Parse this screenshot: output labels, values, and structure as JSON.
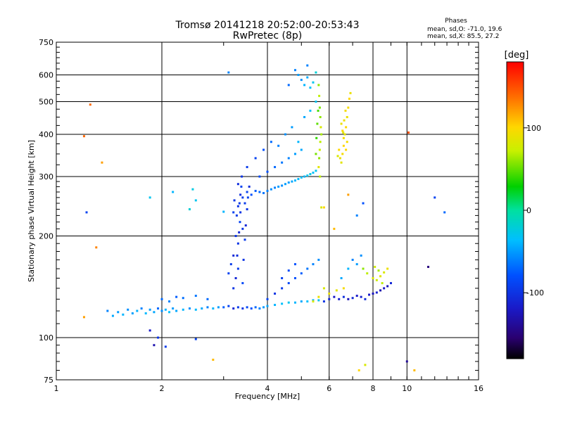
{
  "chart_data": {
    "type": "scatter",
    "title": "Tromsø 20141218 20:52:00-20:53:43",
    "subtitle": "RwPretec (8p)",
    "xlabel": "Frequency [MHz]",
    "ylabel": "Stationary phase Virtual Height [km]",
    "x_scale": "log",
    "y_scale": "log",
    "xlim": [
      1,
      16
    ],
    "ylim": [
      75,
      750
    ],
    "x_ticks": [
      1,
      2,
      4,
      6,
      8,
      10,
      16
    ],
    "x_tick_labels": [
      "1",
      "2",
      "4",
      "6",
      "8",
      "10",
      "16"
    ],
    "y_ticks": [
      75,
      100,
      200,
      300,
      400,
      500,
      600,
      750
    ],
    "y_tick_labels": [
      "75",
      "100",
      "200",
      "300",
      "400",
      "500",
      "600",
      "750"
    ],
    "x_grid_lines": [
      2,
      4,
      6,
      8,
      10
    ],
    "y_grid_lines": [
      100,
      200,
      300,
      400,
      500,
      600
    ],
    "grid": true,
    "phases_box": {
      "heading": "Phases",
      "line_o": "mean, sd,O: -71.0, 19.6",
      "line_x": "mean, sd,X:  85.5, 27.2"
    },
    "colorbar": {
      "label": "[deg]",
      "range": [
        -180,
        180
      ],
      "ticks": [
        100,
        0,
        -100
      ],
      "tick_labels": [
        "100",
        "0",
        "-100"
      ]
    },
    "series": [
      {
        "points": [
          [
            1.4,
            120,
            -60
          ],
          [
            1.45,
            116,
            -45
          ],
          [
            1.5,
            119,
            -50
          ],
          [
            1.55,
            117,
            -40
          ],
          [
            1.6,
            121,
            -55
          ],
          [
            1.65,
            118,
            -48
          ],
          [
            1.7,
            120,
            -42
          ],
          [
            1.75,
            122,
            -60
          ],
          [
            1.8,
            118,
            -38
          ],
          [
            1.85,
            121,
            -50
          ],
          [
            1.9,
            119,
            -45
          ],
          [
            1.95,
            122,
            -70
          ],
          [
            2.0,
            120,
            -55
          ],
          [
            2.05,
            121,
            -40
          ],
          [
            2.1,
            119,
            -35
          ],
          [
            2.15,
            122,
            -50
          ],
          [
            2.2,
            120,
            -45
          ],
          [
            2.3,
            121,
            -40
          ],
          [
            2.4,
            122,
            -55
          ],
          [
            2.5,
            121,
            -38
          ],
          [
            2.6,
            122,
            -45
          ],
          [
            2.7,
            123,
            -60
          ],
          [
            2.8,
            122,
            -40
          ],
          [
            2.9,
            123,
            -50
          ],
          [
            3.0,
            123,
            -75
          ],
          [
            3.1,
            124,
            -90
          ],
          [
            3.2,
            122,
            -110
          ],
          [
            3.3,
            123,
            -95
          ],
          [
            3.4,
            122,
            -100
          ],
          [
            3.5,
            123,
            -85
          ],
          [
            3.6,
            122,
            -80
          ],
          [
            3.7,
            123,
            -70
          ],
          [
            3.8,
            122,
            -60
          ],
          [
            3.9,
            123,
            -50
          ],
          [
            4.0,
            124,
            -45
          ],
          [
            4.2,
            125,
            -40
          ],
          [
            4.4,
            126,
            -35
          ],
          [
            4.6,
            127,
            -30
          ],
          [
            4.8,
            127,
            -40
          ],
          [
            5.0,
            128,
            -45
          ],
          [
            5.2,
            128,
            -35
          ],
          [
            5.4,
            129,
            -40
          ],
          [
            5.6,
            129,
            -30
          ],
          [
            2.0,
            130,
            -70
          ],
          [
            2.1,
            128,
            -60
          ],
          [
            2.2,
            132,
            -75
          ],
          [
            2.3,
            131,
            -68
          ],
          [
            2.5,
            133,
            -65
          ],
          [
            2.7,
            130,
            -70
          ],
          [
            3.2,
            140,
            -100
          ],
          [
            3.25,
            150,
            -110
          ],
          [
            3.3,
            160,
            -95
          ],
          [
            3.28,
            175,
            -105
          ],
          [
            3.3,
            190,
            -100
          ],
          [
            3.32,
            205,
            -110
          ],
          [
            3.34,
            220,
            -90
          ],
          [
            3.35,
            235,
            -100
          ],
          [
            3.33,
            250,
            -95
          ],
          [
            3.35,
            265,
            -105
          ],
          [
            3.37,
            280,
            -90
          ],
          [
            3.4,
            145,
            -85
          ],
          [
            3.42,
            170,
            -100
          ],
          [
            3.45,
            195,
            -95
          ],
          [
            3.47,
            215,
            -110
          ],
          [
            3.5,
            240,
            -100
          ],
          [
            3.52,
            260,
            -90
          ],
          [
            3.55,
            280,
            -105
          ],
          [
            3.2,
            175,
            -110
          ],
          [
            3.25,
            200,
            -100
          ],
          [
            3.27,
            230,
            -95
          ],
          [
            3.22,
            255,
            -100
          ],
          [
            3.3,
            285,
            -105
          ],
          [
            3.15,
            165,
            -95
          ],
          [
            3.1,
            155,
            -90
          ],
          [
            3.4,
            210,
            -100
          ],
          [
            3.45,
            250,
            -95
          ],
          [
            3.38,
            300,
            -100
          ],
          [
            3.2,
            235,
            -90
          ],
          [
            3.3,
            245,
            -100
          ],
          [
            3.4,
            260,
            -95
          ],
          [
            3.5,
            270,
            -90
          ],
          [
            3.6,
            265,
            -80
          ],
          [
            3.7,
            272,
            -75
          ],
          [
            3.8,
            270,
            -70
          ],
          [
            3.9,
            268,
            -65
          ],
          [
            4.0,
            272,
            -60
          ],
          [
            4.1,
            275,
            -55
          ],
          [
            4.2,
            278,
            -60
          ],
          [
            4.3,
            280,
            -50
          ],
          [
            4.4,
            282,
            -55
          ],
          [
            4.5,
            285,
            -48
          ],
          [
            4.6,
            288,
            -50
          ],
          [
            4.7,
            290,
            -45
          ],
          [
            4.8,
            292,
            -40
          ],
          [
            4.9,
            295,
            -38
          ],
          [
            5.0,
            298,
            -35
          ],
          [
            5.1,
            300,
            -40
          ],
          [
            5.2,
            302,
            -30
          ],
          [
            5.3,
            305,
            -25
          ],
          [
            5.4,
            308,
            -35
          ],
          [
            5.5,
            312,
            -30
          ],
          [
            3.5,
            320,
            -95
          ],
          [
            3.7,
            340,
            -90
          ],
          [
            3.9,
            360,
            -80
          ],
          [
            4.1,
            380,
            -70
          ],
          [
            4.3,
            370,
            -60
          ],
          [
            4.5,
            400,
            -55
          ],
          [
            4.7,
            420,
            -50
          ],
          [
            4.9,
            380,
            -40
          ],
          [
            5.1,
            450,
            -45
          ],
          [
            5.3,
            470,
            -35
          ],
          [
            5.5,
            500,
            -30
          ],
          [
            3.8,
            300,
            -85
          ],
          [
            4.0,
            310,
            -80
          ],
          [
            4.2,
            320,
            -70
          ],
          [
            4.4,
            330,
            -65
          ],
          [
            4.6,
            340,
            -60
          ],
          [
            4.8,
            350,
            -50
          ],
          [
            5.0,
            360,
            -45
          ],
          [
            5.6,
            560,
            60
          ],
          [
            5.62,
            520,
            70
          ],
          [
            5.64,
            480,
            55
          ],
          [
            5.66,
            450,
            60
          ],
          [
            5.68,
            420,
            80
          ],
          [
            5.7,
            400,
            65
          ],
          [
            5.66,
            380,
            70
          ],
          [
            5.64,
            360,
            75
          ],
          [
            5.62,
            340,
            60
          ],
          [
            5.6,
            320,
            85
          ],
          [
            5.65,
            300,
            70
          ],
          [
            5.55,
            430,
            50
          ],
          [
            5.58,
            470,
            45
          ],
          [
            5.52,
            390,
            40
          ],
          [
            5.5,
            350,
            55
          ],
          [
            4.8,
            620,
            -60
          ],
          [
            4.9,
            600,
            -50
          ],
          [
            5.0,
            580,
            -55
          ],
          [
            5.1,
            560,
            -40
          ],
          [
            5.2,
            590,
            -45
          ],
          [
            5.3,
            550,
            -35
          ],
          [
            5.4,
            570,
            -30
          ],
          [
            4.6,
            560,
            -70
          ],
          [
            5.2,
            640,
            -60
          ],
          [
            5.5,
            610,
            -20
          ],
          [
            6.5,
            430,
            90
          ],
          [
            6.55,
            410,
            100
          ],
          [
            6.6,
            390,
            95
          ],
          [
            6.65,
            400,
            85
          ],
          [
            6.7,
            420,
            100
          ],
          [
            6.75,
            450,
            90
          ],
          [
            6.8,
            480,
            95
          ],
          [
            6.85,
            510,
            100
          ],
          [
            6.9,
            530,
            90
          ],
          [
            6.6,
            370,
            100
          ],
          [
            6.55,
            350,
            95
          ],
          [
            6.5,
            330,
            85
          ],
          [
            6.45,
            340,
            90
          ],
          [
            6.7,
            360,
            100
          ],
          [
            6.75,
            380,
            95
          ],
          [
            6.4,
            360,
            100
          ],
          [
            6.35,
            345,
            80
          ],
          [
            6.62,
            440,
            90
          ],
          [
            6.68,
            470,
            95
          ],
          [
            6.58,
            405,
            85
          ],
          [
            4.0,
            130,
            -90
          ],
          [
            4.2,
            135,
            -100
          ],
          [
            4.4,
            140,
            -95
          ],
          [
            4.6,
            145,
            -85
          ],
          [
            4.8,
            150,
            -80
          ],
          [
            5.0,
            155,
            -75
          ],
          [
            5.2,
            160,
            -65
          ],
          [
            5.4,
            165,
            -60
          ],
          [
            5.6,
            170,
            -55
          ],
          [
            4.4,
            150,
            -90
          ],
          [
            4.6,
            158,
            -85
          ],
          [
            4.8,
            165,
            -80
          ],
          [
            5.8,
            128,
            -100
          ],
          [
            6.0,
            130,
            -110
          ],
          [
            6.2,
            132,
            -120
          ],
          [
            6.4,
            130,
            -115
          ],
          [
            6.6,
            132,
            -105
          ],
          [
            6.8,
            130,
            -125
          ],
          [
            7.0,
            131,
            -110
          ],
          [
            7.2,
            133,
            -120
          ],
          [
            7.4,
            132,
            -115
          ],
          [
            7.6,
            130,
            -105
          ],
          [
            7.8,
            134,
            -120
          ],
          [
            8.0,
            135,
            -125
          ],
          [
            8.2,
            136,
            -115
          ],
          [
            8.4,
            138,
            -130
          ],
          [
            8.6,
            140,
            -120
          ],
          [
            8.8,
            142,
            -125
          ],
          [
            9.0,
            145,
            -110
          ],
          [
            5.8,
            140,
            80
          ],
          [
            6.0,
            135,
            90
          ],
          [
            6.3,
            138,
            85
          ],
          [
            6.6,
            140,
            95
          ],
          [
            5.6,
            132,
            90
          ],
          [
            5.4,
            128,
            80
          ],
          [
            7.5,
            160,
            60
          ],
          [
            7.7,
            155,
            70
          ],
          [
            8.0,
            150,
            80
          ],
          [
            8.2,
            148,
            75
          ],
          [
            8.4,
            152,
            85
          ],
          [
            8.6,
            156,
            80
          ],
          [
            8.8,
            160,
            90
          ],
          [
            8.5,
            145,
            70
          ],
          [
            8.3,
            158,
            65
          ],
          [
            8.1,
            162,
            75
          ],
          [
            7.0,
            170,
            -60
          ],
          [
            7.2,
            165,
            -50
          ],
          [
            7.4,
            175,
            -55
          ],
          [
            6.8,
            160,
            -40
          ],
          [
            6.5,
            150,
            -45
          ],
          [
            1.2,
            115,
            120
          ],
          [
            1.25,
            490,
            140
          ],
          [
            1.3,
            185,
            130
          ],
          [
            1.2,
            395,
            140
          ],
          [
            1.35,
            330,
            120
          ],
          [
            1.22,
            235,
            -90
          ],
          [
            1.85,
            105,
            -120
          ],
          [
            1.9,
            95,
            -130
          ],
          [
            1.95,
            100,
            -100
          ],
          [
            2.05,
            94,
            -95
          ],
          [
            2.5,
            99,
            -90
          ],
          [
            2.8,
            86,
            110
          ],
          [
            3.1,
            610,
            -60
          ],
          [
            3.0,
            236,
            -40
          ],
          [
            5.7,
            243,
            80
          ],
          [
            5.8,
            243,
            100
          ],
          [
            6.2,
            210,
            110
          ],
          [
            6.8,
            265,
            120
          ],
          [
            7.3,
            80,
            100
          ],
          [
            7.6,
            83,
            80
          ],
          [
            10.0,
            85,
            -140
          ],
          [
            10.1,
            405,
            150
          ],
          [
            10.5,
            80,
            110
          ],
          [
            11.5,
            162,
            -150
          ],
          [
            12.0,
            260,
            -90
          ],
          [
            12.8,
            235,
            -70
          ],
          [
            7.2,
            230,
            -60
          ],
          [
            7.5,
            250,
            -80
          ],
          [
            2.4,
            240,
            -20
          ],
          [
            2.5,
            255,
            -30
          ],
          [
            2.45,
            275,
            -25
          ],
          [
            1.85,
            260,
            -30
          ],
          [
            2.15,
            270,
            -40
          ]
        ]
      }
    ]
  }
}
